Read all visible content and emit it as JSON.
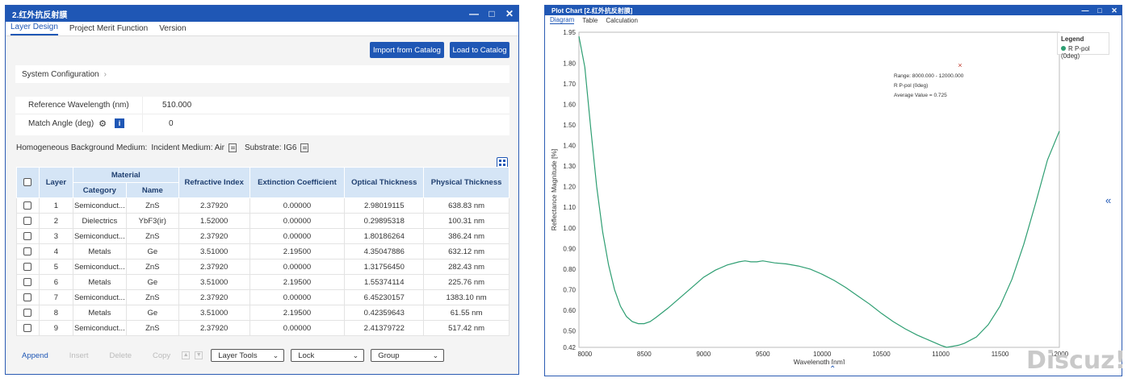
{
  "left_panel": {
    "title": "2.红外抗反射膜",
    "tabs": [
      {
        "label": "Layer Design",
        "active": true
      },
      {
        "label": "Project Merit Function",
        "active": false
      },
      {
        "label": "Version",
        "active": false
      }
    ],
    "buttons": {
      "import": "Import from Catalog",
      "load": "Load to Catalog"
    },
    "system_configuration": "System Configuration",
    "reference_wavelength_label": "Reference Wavelength (nm)",
    "reference_wavelength_value": "510.000",
    "match_angle_label": "Match Angle (deg)",
    "match_angle_value": "0",
    "background_medium_label": "Homogeneous Background Medium:",
    "incident_medium": "Incident Medium: Air",
    "substrate": "Substrate: IG6",
    "table": {
      "headers": {
        "layer": "Layer",
        "material": "Material",
        "category": "Category",
        "name": "Name",
        "refractive_index": "Refractive Index",
        "extinction_coefficient": "Extinction Coefficient",
        "optical_thickness": "Optical Thickness",
        "physical_thickness": "Physical Thickness"
      },
      "rows": [
        {
          "layer": "1",
          "category": "Semiconduct...",
          "name": "ZnS",
          "n": "2.37920",
          "k": "0.00000",
          "ot": "2.98019115",
          "pt": "638.83 nm"
        },
        {
          "layer": "2",
          "category": "Dielectrics",
          "name": "YbF3(ir)",
          "n": "1.52000",
          "k": "0.00000",
          "ot": "0.29895318",
          "pt": "100.31 nm"
        },
        {
          "layer": "3",
          "category": "Semiconduct...",
          "name": "ZnS",
          "n": "2.37920",
          "k": "0.00000",
          "ot": "1.80186264",
          "pt": "386.24 nm"
        },
        {
          "layer": "4",
          "category": "Metals",
          "name": "Ge",
          "n": "3.51000",
          "k": "2.19500",
          "ot": "4.35047886",
          "pt": "632.12 nm"
        },
        {
          "layer": "5",
          "category": "Semiconduct...",
          "name": "ZnS",
          "n": "2.37920",
          "k": "0.00000",
          "ot": "1.31756450",
          "pt": "282.43 nm"
        },
        {
          "layer": "6",
          "category": "Metals",
          "name": "Ge",
          "n": "3.51000",
          "k": "2.19500",
          "ot": "1.55374114",
          "pt": "225.76 nm"
        },
        {
          "layer": "7",
          "category": "Semiconduct...",
          "name": "ZnS",
          "n": "2.37920",
          "k": "0.00000",
          "ot": "6.45230157",
          "pt": "1383.10 nm"
        },
        {
          "layer": "8",
          "category": "Metals",
          "name": "Ge",
          "n": "3.51000",
          "k": "2.19500",
          "ot": "0.42359643",
          "pt": "61.55 nm"
        },
        {
          "layer": "9",
          "category": "Semiconduct...",
          "name": "ZnS",
          "n": "2.37920",
          "k": "0.00000",
          "ot": "2.41379722",
          "pt": "517.42 nm"
        }
      ]
    },
    "footer": {
      "append": "Append",
      "insert": "Insert",
      "delete": "Delete",
      "copy": "Copy",
      "layer_tools": "Layer Tools",
      "lock": "Lock",
      "group": "Group"
    }
  },
  "right_panel": {
    "title": "Plot Chart [2.红外抗反射膜]",
    "tabs": [
      {
        "label": "Diagram",
        "active": true
      },
      {
        "label": "Table",
        "active": false
      },
      {
        "label": "Calculation",
        "active": false
      }
    ],
    "legend_title": "Legend",
    "annotation": {
      "range": "Range: 8000.000 - 12000.000",
      "series": "R P-pol (0deg)",
      "average": "Average Value = 0.725"
    }
  },
  "watermark": "Discuz!",
  "colors": {
    "accent": "#1f57b5",
    "series": "#2e9e72",
    "header_bg": "#d5e5f6"
  },
  "chart_data": {
    "type": "line",
    "title": "",
    "xlabel": "Wavelength [nm]",
    "ylabel": "Reflectance Magnitude [%]",
    "xlim": [
      7950,
      12000
    ],
    "ylim": [
      0.42,
      1.95
    ],
    "xticks": [
      "8000",
      "8500",
      "9000",
      "9500",
      "10000",
      "10500",
      "11000",
      "11500",
      "12000"
    ],
    "yticks": [
      "0.42",
      "0.50",
      "0.60",
      "0.70",
      "0.80",
      "0.90",
      "1.00",
      "1.10",
      "1.20",
      "1.30",
      "1.40",
      "1.50",
      "1.60",
      "1.70",
      "1.80",
      "1.95"
    ],
    "legend": "top-right",
    "series": [
      {
        "name": "R P-pol (0deg)",
        "x": [
          7950,
          8000,
          8050,
          8100,
          8150,
          8200,
          8250,
          8300,
          8350,
          8400,
          8450,
          8500,
          8550,
          8600,
          8700,
          8800,
          8900,
          9000,
          9100,
          9200,
          9300,
          9350,
          9400,
          9450,
          9500,
          9600,
          9700,
          9800,
          9900,
          10000,
          10100,
          10200,
          10300,
          10400,
          10500,
          10600,
          10700,
          10800,
          10900,
          11000,
          11050,
          11100,
          11150,
          11200,
          11300,
          11400,
          11500,
          11600,
          11700,
          11800,
          11900,
          12000
        ],
        "y": [
          1.93,
          1.78,
          1.48,
          1.2,
          0.98,
          0.82,
          0.7,
          0.62,
          0.57,
          0.545,
          0.535,
          0.535,
          0.545,
          0.565,
          0.61,
          0.66,
          0.71,
          0.76,
          0.795,
          0.82,
          0.835,
          0.84,
          0.835,
          0.835,
          0.84,
          0.83,
          0.825,
          0.815,
          0.8,
          0.775,
          0.745,
          0.71,
          0.67,
          0.63,
          0.585,
          0.545,
          0.51,
          0.48,
          0.455,
          0.43,
          0.42,
          0.425,
          0.43,
          0.44,
          0.47,
          0.53,
          0.62,
          0.75,
          0.92,
          1.12,
          1.33,
          1.47
        ]
      }
    ]
  }
}
